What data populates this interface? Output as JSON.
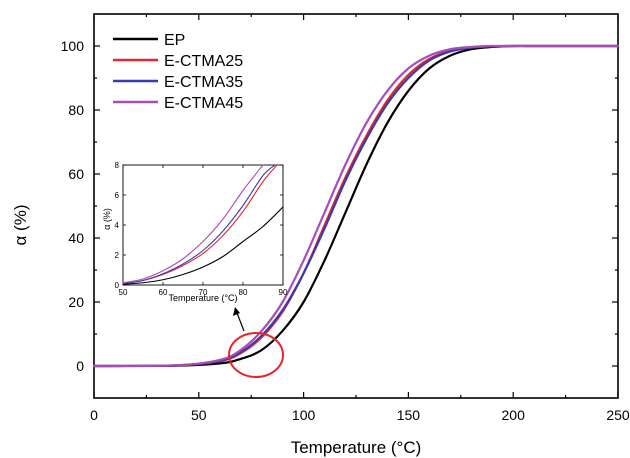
{
  "chart_data": [
    {
      "type": "line",
      "title": "",
      "xlabel": "Temperature (°C)",
      "ylabel": "α (%)",
      "xlim": [
        0,
        250
      ],
      "ylim": [
        -10,
        110
      ],
      "xticks": [
        0,
        50,
        100,
        150,
        200,
        250
      ],
      "yticks": [
        0,
        20,
        40,
        60,
        80,
        100
      ],
      "grid": false,
      "legend": "top-left",
      "series": [
        {
          "name": "EP",
          "color": "#000000",
          "x": [
            0,
            40,
            60,
            70,
            80,
            90,
            100,
            110,
            120,
            130,
            140,
            150,
            160,
            170,
            180,
            190,
            200,
            210,
            220,
            250
          ],
          "y": [
            0,
            0.1,
            0.8,
            2.2,
            5,
            11,
            20,
            33,
            48,
            63,
            76,
            86,
            93,
            97,
            99,
            99.7,
            100,
            100,
            100,
            100
          ]
        },
        {
          "name": "E-CTMA25",
          "color": "#e8262a",
          "x": [
            0,
            40,
            60,
            70,
            80,
            90,
            100,
            110,
            120,
            130,
            140,
            150,
            160,
            170,
            180,
            190,
            200,
            210,
            220,
            250
          ],
          "y": [
            0,
            0.2,
            1.5,
            4,
            9,
            17,
            29,
            44,
            59,
            72,
            83,
            91,
            96,
            98.5,
            99.5,
            99.9,
            100,
            100,
            100,
            100
          ]
        },
        {
          "name": "E-CTMA35",
          "color": "#3a3ab0",
          "x": [
            0,
            40,
            60,
            70,
            80,
            90,
            100,
            110,
            120,
            130,
            140,
            150,
            160,
            170,
            180,
            190,
            200,
            210,
            220,
            250
          ],
          "y": [
            0,
            0.2,
            1.6,
            4.3,
            9.5,
            17.5,
            29,
            43,
            58,
            71,
            82,
            90,
            95.5,
            98.3,
            99.5,
            99.9,
            100,
            100,
            100,
            100
          ]
        },
        {
          "name": "E-CTMA45",
          "color": "#a84cb8",
          "x": [
            0,
            40,
            60,
            70,
            80,
            90,
            100,
            110,
            120,
            130,
            140,
            150,
            160,
            170,
            180,
            190,
            200,
            210,
            220,
            250
          ],
          "y": [
            0,
            0.25,
            1.9,
            5,
            11,
            20,
            33,
            48,
            63,
            76,
            86,
            93,
            97,
            99,
            99.7,
            100,
            100,
            100,
            100,
            100
          ]
        }
      ]
    },
    {
      "type": "line",
      "title": "",
      "xlabel": "Temperature (°C)",
      "ylabel": "α (%)",
      "xlim": [
        50,
        90
      ],
      "ylim": [
        0,
        8
      ],
      "xticks": [
        50,
        60,
        70,
        80,
        90
      ],
      "yticks": [
        0,
        2,
        4,
        6,
        8
      ],
      "grid": false,
      "series": [
        {
          "name": "EP",
          "color": "#000000",
          "x": [
            50,
            55,
            60,
            65,
            70,
            75,
            80,
            85,
            90
          ],
          "y": [
            0.05,
            0.15,
            0.35,
            0.7,
            1.2,
            1.9,
            2.9,
            3.9,
            5.2
          ]
        },
        {
          "name": "E-CTMA25",
          "color": "#e8262a",
          "x": [
            50,
            55,
            60,
            65,
            70,
            75,
            80,
            85,
            88.5
          ],
          "y": [
            0.1,
            0.3,
            0.7,
            1.3,
            2.1,
            3.3,
            4.9,
            6.9,
            8
          ]
        },
        {
          "name": "E-CTMA35",
          "color": "#3a3ab0",
          "x": [
            50,
            55,
            60,
            65,
            70,
            75,
            80,
            85,
            88
          ],
          "y": [
            0.1,
            0.3,
            0.75,
            1.4,
            2.3,
            3.6,
            5.3,
            7.3,
            8
          ]
        },
        {
          "name": "E-CTMA45",
          "color": "#a84cb8",
          "x": [
            50,
            55,
            60,
            65,
            70,
            75,
            80,
            85
          ],
          "y": [
            0.15,
            0.4,
            0.95,
            1.75,
            2.9,
            4.4,
            6.3,
            8
          ]
        }
      ]
    }
  ]
}
